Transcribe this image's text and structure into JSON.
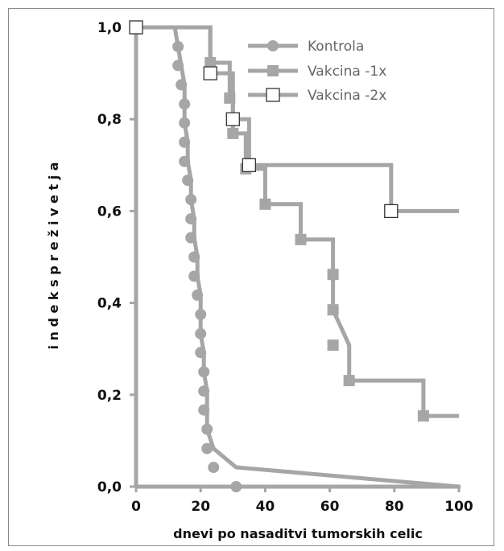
{
  "chart_data": {
    "type": "line",
    "title": "",
    "xlabel": "dnevi po nasaditvi tumorskih celic",
    "ylabel": "i n d e k s   p r e ž i v e t j a",
    "xlim": [
      0,
      100
    ],
    "ylim": [
      0,
      1.0
    ],
    "x_ticks": [
      "0",
      "20",
      "40",
      "60",
      "80",
      "100"
    ],
    "y_ticks": [
      "0,0",
      "0,2",
      "0,4",
      "0,6",
      "0,8",
      "1,0"
    ],
    "legend_position": "top-right",
    "series": [
      {
        "name": "Kontrola",
        "marker": "circle",
        "color": "#a6a6a6",
        "x": [
          0,
          12,
          13,
          14,
          15,
          15,
          15,
          16,
          16,
          17,
          17,
          18,
          18,
          19,
          19,
          20,
          20,
          20,
          21,
          21,
          22,
          22,
          22,
          24,
          31,
          100
        ],
        "y": [
          1.0,
          1.0,
          0.958,
          0.917,
          0.875,
          0.833,
          0.792,
          0.75,
          0.708,
          0.667,
          0.625,
          0.583,
          0.542,
          0.5,
          0.458,
          0.417,
          0.375,
          0.333,
          0.292,
          0.25,
          0.208,
          0.167,
          0.125,
          0.083,
          0.042,
          0.0
        ],
        "markers": [
          [
            13,
            0.958
          ],
          [
            13,
            0.917
          ],
          [
            14,
            0.875
          ],
          [
            15,
            0.833
          ],
          [
            15,
            0.792
          ],
          [
            15,
            0.75
          ],
          [
            15,
            0.708
          ],
          [
            16,
            0.667
          ],
          [
            17,
            0.625
          ],
          [
            17,
            0.583
          ],
          [
            17,
            0.542
          ],
          [
            18,
            0.5
          ],
          [
            18,
            0.458
          ],
          [
            19,
            0.417
          ],
          [
            20,
            0.375
          ],
          [
            20,
            0.333
          ],
          [
            20,
            0.292
          ],
          [
            21,
            0.25
          ],
          [
            21,
            0.208
          ],
          [
            21,
            0.167
          ],
          [
            22,
            0.125
          ],
          [
            22,
            0.083
          ],
          [
            24,
            0.042
          ],
          [
            31,
            0.0
          ]
        ]
      },
      {
        "name": "Vakcina -1x",
        "marker": "square",
        "color": "#a6a6a6",
        "x": [
          0,
          23,
          23,
          29,
          29,
          30,
          30,
          34,
          34,
          40,
          40,
          51,
          51,
          61,
          61,
          61,
          66,
          66,
          89,
          89,
          100
        ],
        "y": [
          1.0,
          1.0,
          0.923,
          0.923,
          0.846,
          0.846,
          0.769,
          0.769,
          0.692,
          0.692,
          0.615,
          0.615,
          0.538,
          0.538,
          0.462,
          0.385,
          0.308,
          0.231,
          0.231,
          0.154,
          0.154
        ],
        "markers": [
          [
            23,
            0.923
          ],
          [
            29,
            0.846
          ],
          [
            30,
            0.769
          ],
          [
            34,
            0.692
          ],
          [
            40,
            0.615
          ],
          [
            51,
            0.538
          ],
          [
            61,
            0.462
          ],
          [
            61,
            0.385
          ],
          [
            61,
            0.308
          ],
          [
            66,
            0.231
          ],
          [
            89,
            0.154
          ]
        ]
      },
      {
        "name": "Vakcina -2x",
        "marker": "open-square",
        "color": "#a6a6a6",
        "x": [
          0,
          23,
          23,
          30,
          30,
          35,
          35,
          79,
          79,
          100
        ],
        "y": [
          1.0,
          1.0,
          0.9,
          0.9,
          0.8,
          0.8,
          0.7,
          0.7,
          0.6,
          0.6
        ],
        "markers": [
          [
            0,
            1.0
          ],
          [
            23,
            0.9
          ],
          [
            30,
            0.8
          ],
          [
            35,
            0.7
          ],
          [
            79,
            0.6
          ]
        ]
      }
    ]
  }
}
